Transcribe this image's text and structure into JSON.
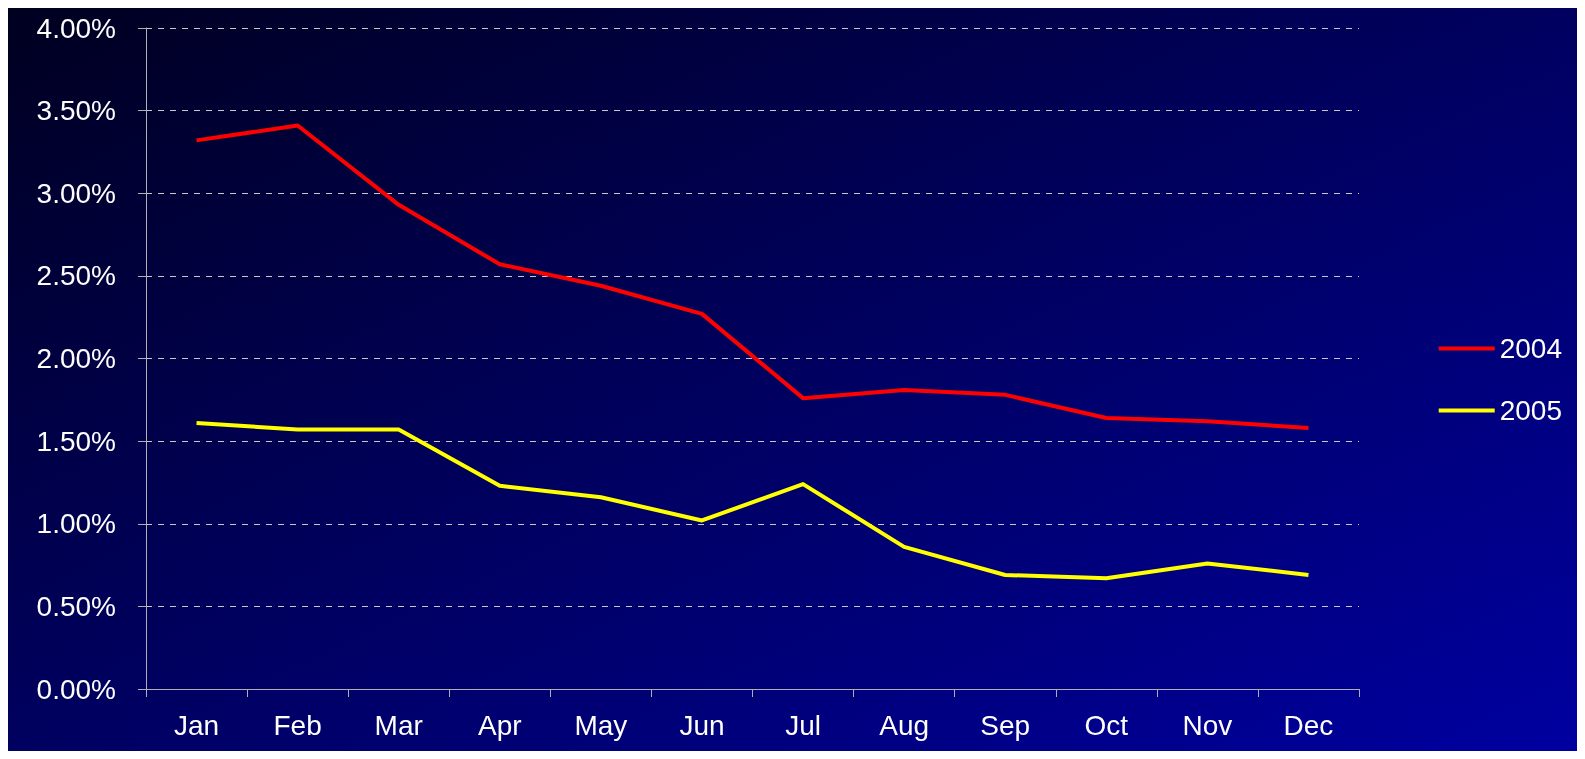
{
  "chart_data": {
    "type": "line",
    "categories": [
      "Jan",
      "Feb",
      "Mar",
      "Apr",
      "May",
      "Jun",
      "Jul",
      "Aug",
      "Sep",
      "Oct",
      "Nov",
      "Dec"
    ],
    "series": [
      {
        "name": "2004",
        "color": "#ff0000",
        "values": [
          3.32,
          3.41,
          2.93,
          2.57,
          2.44,
          2.27,
          1.76,
          1.81,
          1.78,
          1.64,
          1.62,
          1.58
        ]
      },
      {
        "name": "2005",
        "color": "#ffff00",
        "values": [
          1.61,
          1.57,
          1.57,
          1.23,
          1.16,
          1.02,
          1.24,
          0.86,
          0.69,
          0.67,
          0.76,
          0.69
        ]
      }
    ],
    "ylim": [
      0,
      4
    ],
    "yticks": [
      {
        "value": 0,
        "label": "0.00%"
      },
      {
        "value": 0.5,
        "label": "0.50%"
      },
      {
        "value": 1,
        "label": "1.00%"
      },
      {
        "value": 1.5,
        "label": "1.50%"
      },
      {
        "value": 2,
        "label": "2.00%"
      },
      {
        "value": 2.5,
        "label": "2.50%"
      },
      {
        "value": 3,
        "label": "3.00%"
      },
      {
        "value": 3.5,
        "label": "3.50%"
      },
      {
        "value": 4,
        "label": "4.00%"
      }
    ],
    "grid": "y",
    "legend": "right",
    "marker": "none",
    "line_style": "solid"
  }
}
